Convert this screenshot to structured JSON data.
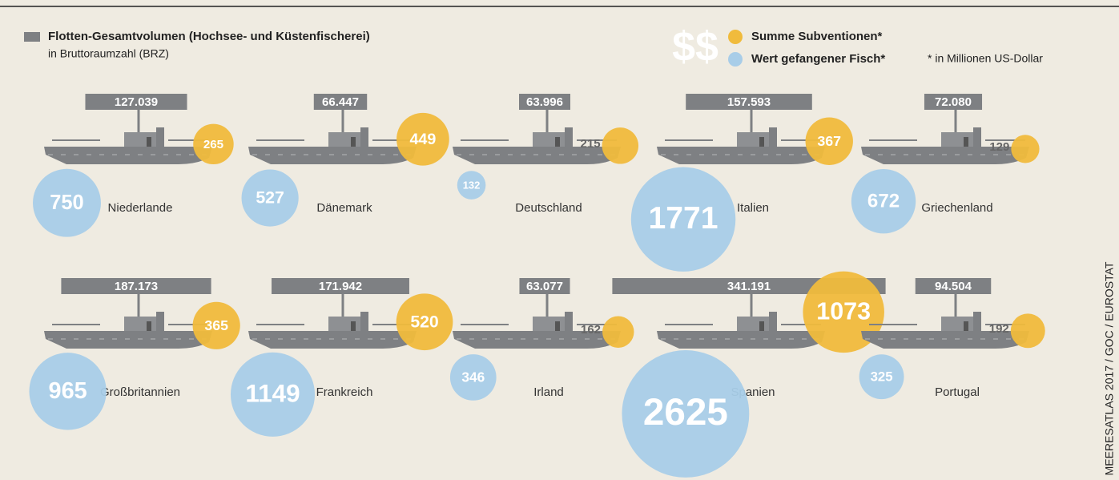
{
  "chart_data": {
    "type": "ship",
    "symbol": "$$",
    "unit_label": "in Bruttoraumzahl (BRZ)",
    "note": "* in Millionen US-Dollar",
    "source": "MEERESATLAS 2017 / GOC / EUROSTAT",
    "categories": [
      "Niederlande",
      "Dänemark",
      "Deutschland",
      "Italien",
      "Griechenland",
      "Großbritannien",
      "Frankreich",
      "Irland",
      "Spanien",
      "Portugal"
    ],
    "series": [
      {
        "name": "Flotten-Gesamtvolumen (Hochsee- und Küstenfischerei)",
        "color": "#7e8083",
        "values": [
          127039,
          66447,
          63996,
          157593,
          72080,
          187173,
          171942,
          63077,
          341191,
          94504
        ],
        "value_labels": [
          "127.039",
          "66.447",
          "63.996",
          "157.593",
          "72.080",
          "187.173",
          "171.942",
          "63.077",
          "341.191",
          "94.504"
        ]
      },
      {
        "name": "Summe Subventionen*",
        "color": "#f0bb3c",
        "values": [
          265,
          449,
          215,
          367,
          129,
          365,
          520,
          162,
          1073,
          192
        ]
      },
      {
        "name": "Wert gefangener Fisch*",
        "color": "#a8cde8",
        "values": [
          750,
          527,
          132,
          1771,
          672,
          965,
          1149,
          346,
          2625,
          325
        ]
      }
    ]
  }
}
